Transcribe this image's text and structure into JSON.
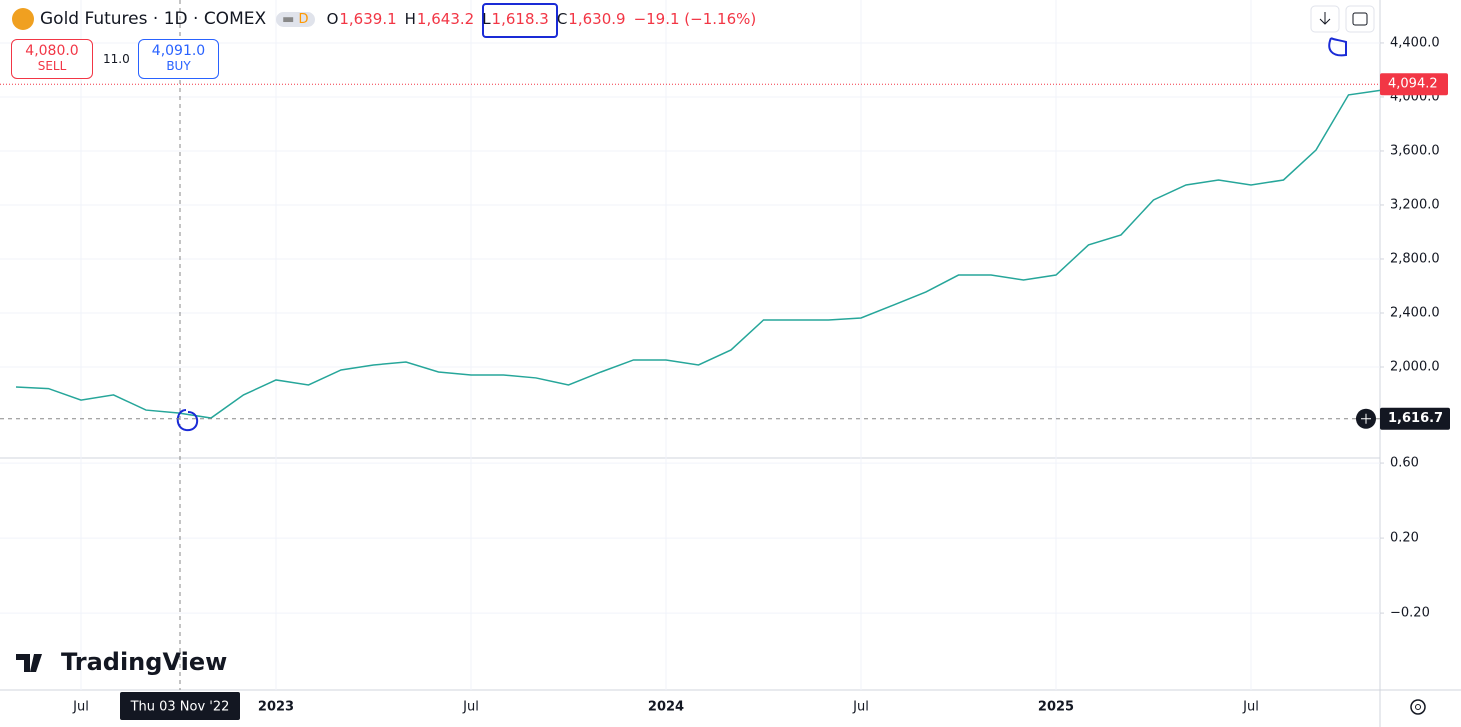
{
  "header": {
    "symbol": "Gold Futures · 1D · COMEX",
    "badge": "D",
    "ohlc": [
      {
        "key": "O",
        "value": "1,639.1"
      },
      {
        "key": "H",
        "value": "1,643.2"
      },
      {
        "key": "L",
        "value": "1,618.3"
      },
      {
        "key": "C",
        "value": "1,630.9"
      }
    ],
    "change": "−19.1 (−1.16%)"
  },
  "trade": {
    "sell_price": "4,080.0",
    "sell_label": "SELL",
    "spread": "11.0",
    "buy_price": "4,091.0",
    "buy_label": "BUY"
  },
  "brand": "TradingView",
  "chart_data": [
    {
      "type": "line",
      "categories": [
        null,
        null,
        "Jul",
        null,
        null,
        null,
        null,
        null,
        "2023",
        null,
        null,
        null,
        null,
        null,
        "Jul",
        null,
        null,
        null,
        null,
        null,
        "2024",
        null,
        null,
        null,
        null,
        null,
        "Jul",
        null,
        null,
        null,
        null,
        null,
        "2025",
        null,
        null,
        null,
        null,
        null,
        "Jul",
        null,
        null,
        null,
        null
      ],
      "series": [
        {
          "name": "Gold Futures",
          "color": "#26a69a",
          "values": [
            1852,
            1840,
            1755,
            1793,
            1681,
            1659,
            1622,
            1793,
            1904,
            1867,
            1978,
            2015,
            2037,
            1963,
            1941,
            1941,
            1919,
            1867,
            1963,
            2052,
            2052,
            2015,
            2126,
            2348,
            2348,
            2348,
            2363,
            2459,
            2556,
            2681,
            2681,
            2644,
            2681,
            2904,
            2978,
            3237,
            3348,
            3385,
            3348,
            3385,
            3607,
            4015,
            4050
          ]
        }
      ],
      "ylim": [
        1326,
        4718
      ],
      "yticks": [
        {
          "value": 2000,
          "label": "2,000.0"
        },
        {
          "value": 2400,
          "label": "2,400.0"
        },
        {
          "value": 2800,
          "label": "2,800.0"
        },
        {
          "value": 3200,
          "label": "3,200.0"
        },
        {
          "value": 3600,
          "label": "3,600.0"
        },
        {
          "value": 4000,
          "label": "4,000.0"
        },
        {
          "value": 4400,
          "label": "4,400.0"
        }
      ],
      "grid": true,
      "price_line": {
        "value": 4094.2,
        "label": "4,094.2",
        "color": "#f23645"
      },
      "crosshair": {
        "value": 1616.7,
        "label": "1,616.7",
        "time": "Thu 03 Nov '22"
      }
    },
    {
      "type": "line",
      "ylim": [
        -0.61,
        0.627
      ],
      "yticks": [
        {
          "value": -0.2,
          "label": "−0.20"
        },
        {
          "value": 0.2,
          "label": "0.20"
        },
        {
          "value": 0.6,
          "label": "0.60"
        }
      ],
      "grid": true
    }
  ]
}
